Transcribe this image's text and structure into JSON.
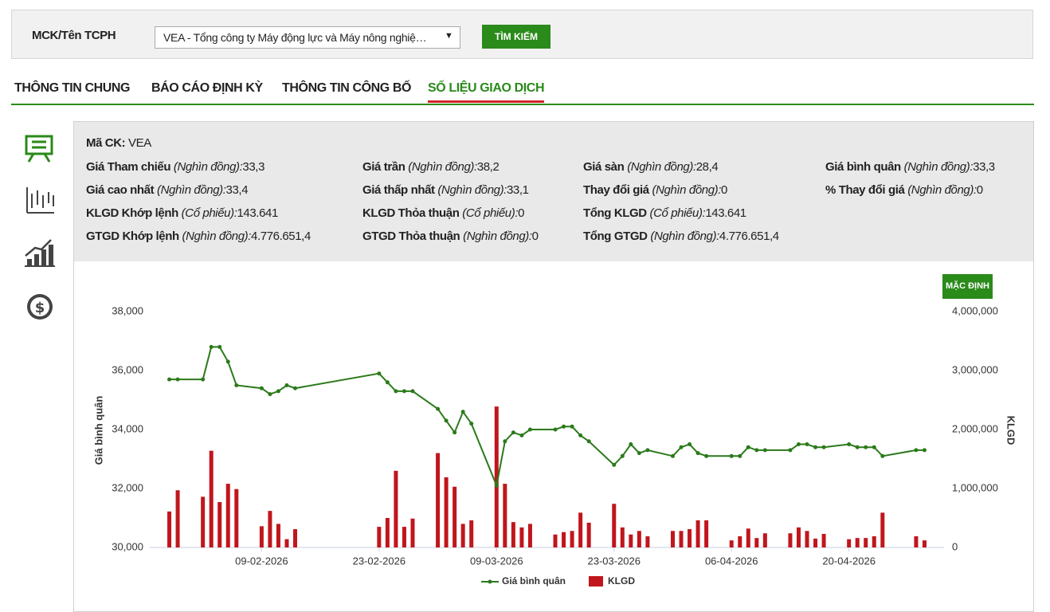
{
  "search": {
    "label": "MCK/Tên TCPH",
    "selected": "VEA - Tổng công ty Máy động lực và Máy nông nghiệ…",
    "button": "TÌM KIẾM"
  },
  "tabs": [
    "THÔNG TIN CHUNG",
    "BÁO CÁO ĐỊNH KỲ",
    "THÔNG TIN CÔNG BỐ",
    "SỐ LIỆU GIAO DỊCH"
  ],
  "active_tab": 3,
  "info": {
    "symbol_label": "Mã CK:",
    "symbol": "VEA",
    "rows": [
      [
        {
          "label": "Giá Tham chiếu",
          "unit": "(Nghìn đồng):",
          "value": "33,3"
        },
        {
          "label": "Giá trần",
          "unit": "(Nghìn đồng):",
          "value": "38,2"
        },
        {
          "label": "Giá sàn",
          "unit": "(Nghìn đồng):",
          "value": "28,4"
        },
        {
          "label": "Giá bình quân",
          "unit": "(Nghìn đồng):",
          "value": "33,3"
        }
      ],
      [
        {
          "label": "Giá cao nhất",
          "unit": "(Nghìn đồng):",
          "value": "33,4"
        },
        {
          "label": "Giá thấp nhất",
          "unit": "(Nghìn đồng):",
          "value": "33,1"
        },
        {
          "label": "Thay đổi giá",
          "unit": "(Nghìn đồng):",
          "value": "0"
        },
        {
          "label": "% Thay đổi giá",
          "unit": "(Nghìn đồng):",
          "value": "0"
        }
      ],
      [
        {
          "label": "KLGD Khớp lệnh",
          "unit": "(Cổ phiếu):",
          "value": "143.641"
        },
        {
          "label": "KLGD Thỏa thuận",
          "unit": "(Cổ phiếu):",
          "value": "0"
        },
        {
          "label": "Tổng KLGD",
          "unit": "(Cổ phiếu):",
          "value": "143.641"
        }
      ],
      [
        {
          "label": "GTGD Khớp lệnh",
          "unit": "(Nghìn đồng):",
          "value": "4.776.651,4"
        },
        {
          "label": "GTGD Thỏa thuận",
          "unit": "(Nghìn đồng):",
          "value": "0"
        },
        {
          "label": "Tổng GTGD",
          "unit": "(Nghìn đồng):",
          "value": "4.776.651,4"
        }
      ]
    ]
  },
  "chart_button": "MẶC ĐỊNH",
  "chart_data": {
    "type": "combo",
    "y_label": "Giá bình quân",
    "y2_label": "KLGD",
    "x": [
      "29-01-2026",
      "30-01-2026",
      "02-02-2026",
      "03-02-2026",
      "04-02-2026",
      "05-02-2026",
      "06-02-2026",
      "09-02-2026",
      "10-02-2026",
      "11-02-2026",
      "12-02-2026",
      "13-02-2026",
      "23-02-2026",
      "24-02-2026",
      "25-02-2026",
      "26-02-2026",
      "27-02-2026",
      "02-03-2026",
      "03-03-2026",
      "04-03-2026",
      "05-03-2026",
      "06-03-2026",
      "09-03-2026",
      "10-03-2026",
      "11-03-2026",
      "12-03-2026",
      "13-03-2026",
      "16-03-2026",
      "17-03-2026",
      "18-03-2026",
      "19-03-2026",
      "20-03-2026",
      "23-03-2026",
      "24-03-2026",
      "25-03-2026",
      "26-03-2026",
      "27-03-2026",
      "30-03-2026",
      "31-03-2026",
      "01-04-2026",
      "02-04-2026",
      "03-04-2026",
      "06-04-2026",
      "07-04-2026",
      "08-04-2026",
      "09-04-2026",
      "10-04-2026",
      "13-04-2026",
      "14-04-2026",
      "15-04-2026",
      "16-04-2026",
      "17-04-2026",
      "20-04-2026",
      "21-04-2026",
      "22-04-2026",
      "23-04-2026",
      "24-04-2026",
      "28-04-2026",
      "29-04-2026"
    ],
    "xlim": [
      "28-01-2026",
      "30-04-2026"
    ],
    "xticks": [
      "09-02-2026",
      "23-02-2026",
      "09-03-2026",
      "23-03-2026",
      "06-04-2026",
      "20-04-2026"
    ],
    "series": [
      {
        "name": "Giá bình quân",
        "type": "line",
        "color": "#2b7a1a",
        "values": [
          35700,
          35700,
          35700,
          36800,
          36800,
          36300,
          35500,
          35400,
          35200,
          35300,
          35500,
          35400,
          35900,
          35600,
          35300,
          35300,
          35300,
          34700,
          34300,
          33900,
          34600,
          34200,
          32100,
          33600,
          33900,
          33800,
          34000,
          34000,
          34100,
          34100,
          33800,
          33600,
          32800,
          33100,
          33500,
          33200,
          33300,
          33100,
          33400,
          33500,
          33200,
          33100,
          33100,
          33100,
          33400,
          33300,
          33300,
          33300,
          33500,
          33500,
          33400,
          33400,
          33500,
          33400,
          33400,
          33400,
          33100,
          33300,
          33300
        ]
      },
      {
        "name": "KLGD",
        "type": "bar",
        "axis": "y2",
        "color": "#c0161c",
        "values": [
          610000,
          970000,
          860000,
          1640000,
          770000,
          1080000,
          990000,
          360000,
          620000,
          400000,
          140000,
          310000,
          350000,
          500000,
          1300000,
          350000,
          490000,
          1600000,
          1190000,
          1030000,
          400000,
          460000,
          2390000,
          1080000,
          430000,
          340000,
          400000,
          220000,
          260000,
          280000,
          590000,
          420000,
          740000,
          340000,
          220000,
          280000,
          190000,
          280000,
          280000,
          310000,
          460000,
          460000,
          120000,
          190000,
          320000,
          160000,
          240000,
          240000,
          340000,
          280000,
          150000,
          230000,
          140000,
          160000,
          160000,
          190000,
          590000,
          190000,
          120000
        ]
      }
    ],
    "ylim": [
      30000,
      38000
    ],
    "yticks": [
      {
        "value": 30000,
        "label": "30,000"
      },
      {
        "value": 32000,
        "label": "32,000"
      },
      {
        "value": 34000,
        "label": "34,000"
      },
      {
        "value": 36000,
        "label": "36,000"
      },
      {
        "value": 38000,
        "label": "38,000"
      }
    ],
    "y2lim": [
      0,
      4000000
    ],
    "y2ticks": [
      0,
      {
        "value": 1000000,
        "label": "1,000,000"
      },
      {
        "value": 2000000,
        "label": "2,000,000"
      },
      {
        "value": 3000000,
        "label": "3,000,000"
      },
      {
        "value": 4000000,
        "label": "4,000,000"
      }
    ],
    "grid": false,
    "legend": "bottom"
  }
}
